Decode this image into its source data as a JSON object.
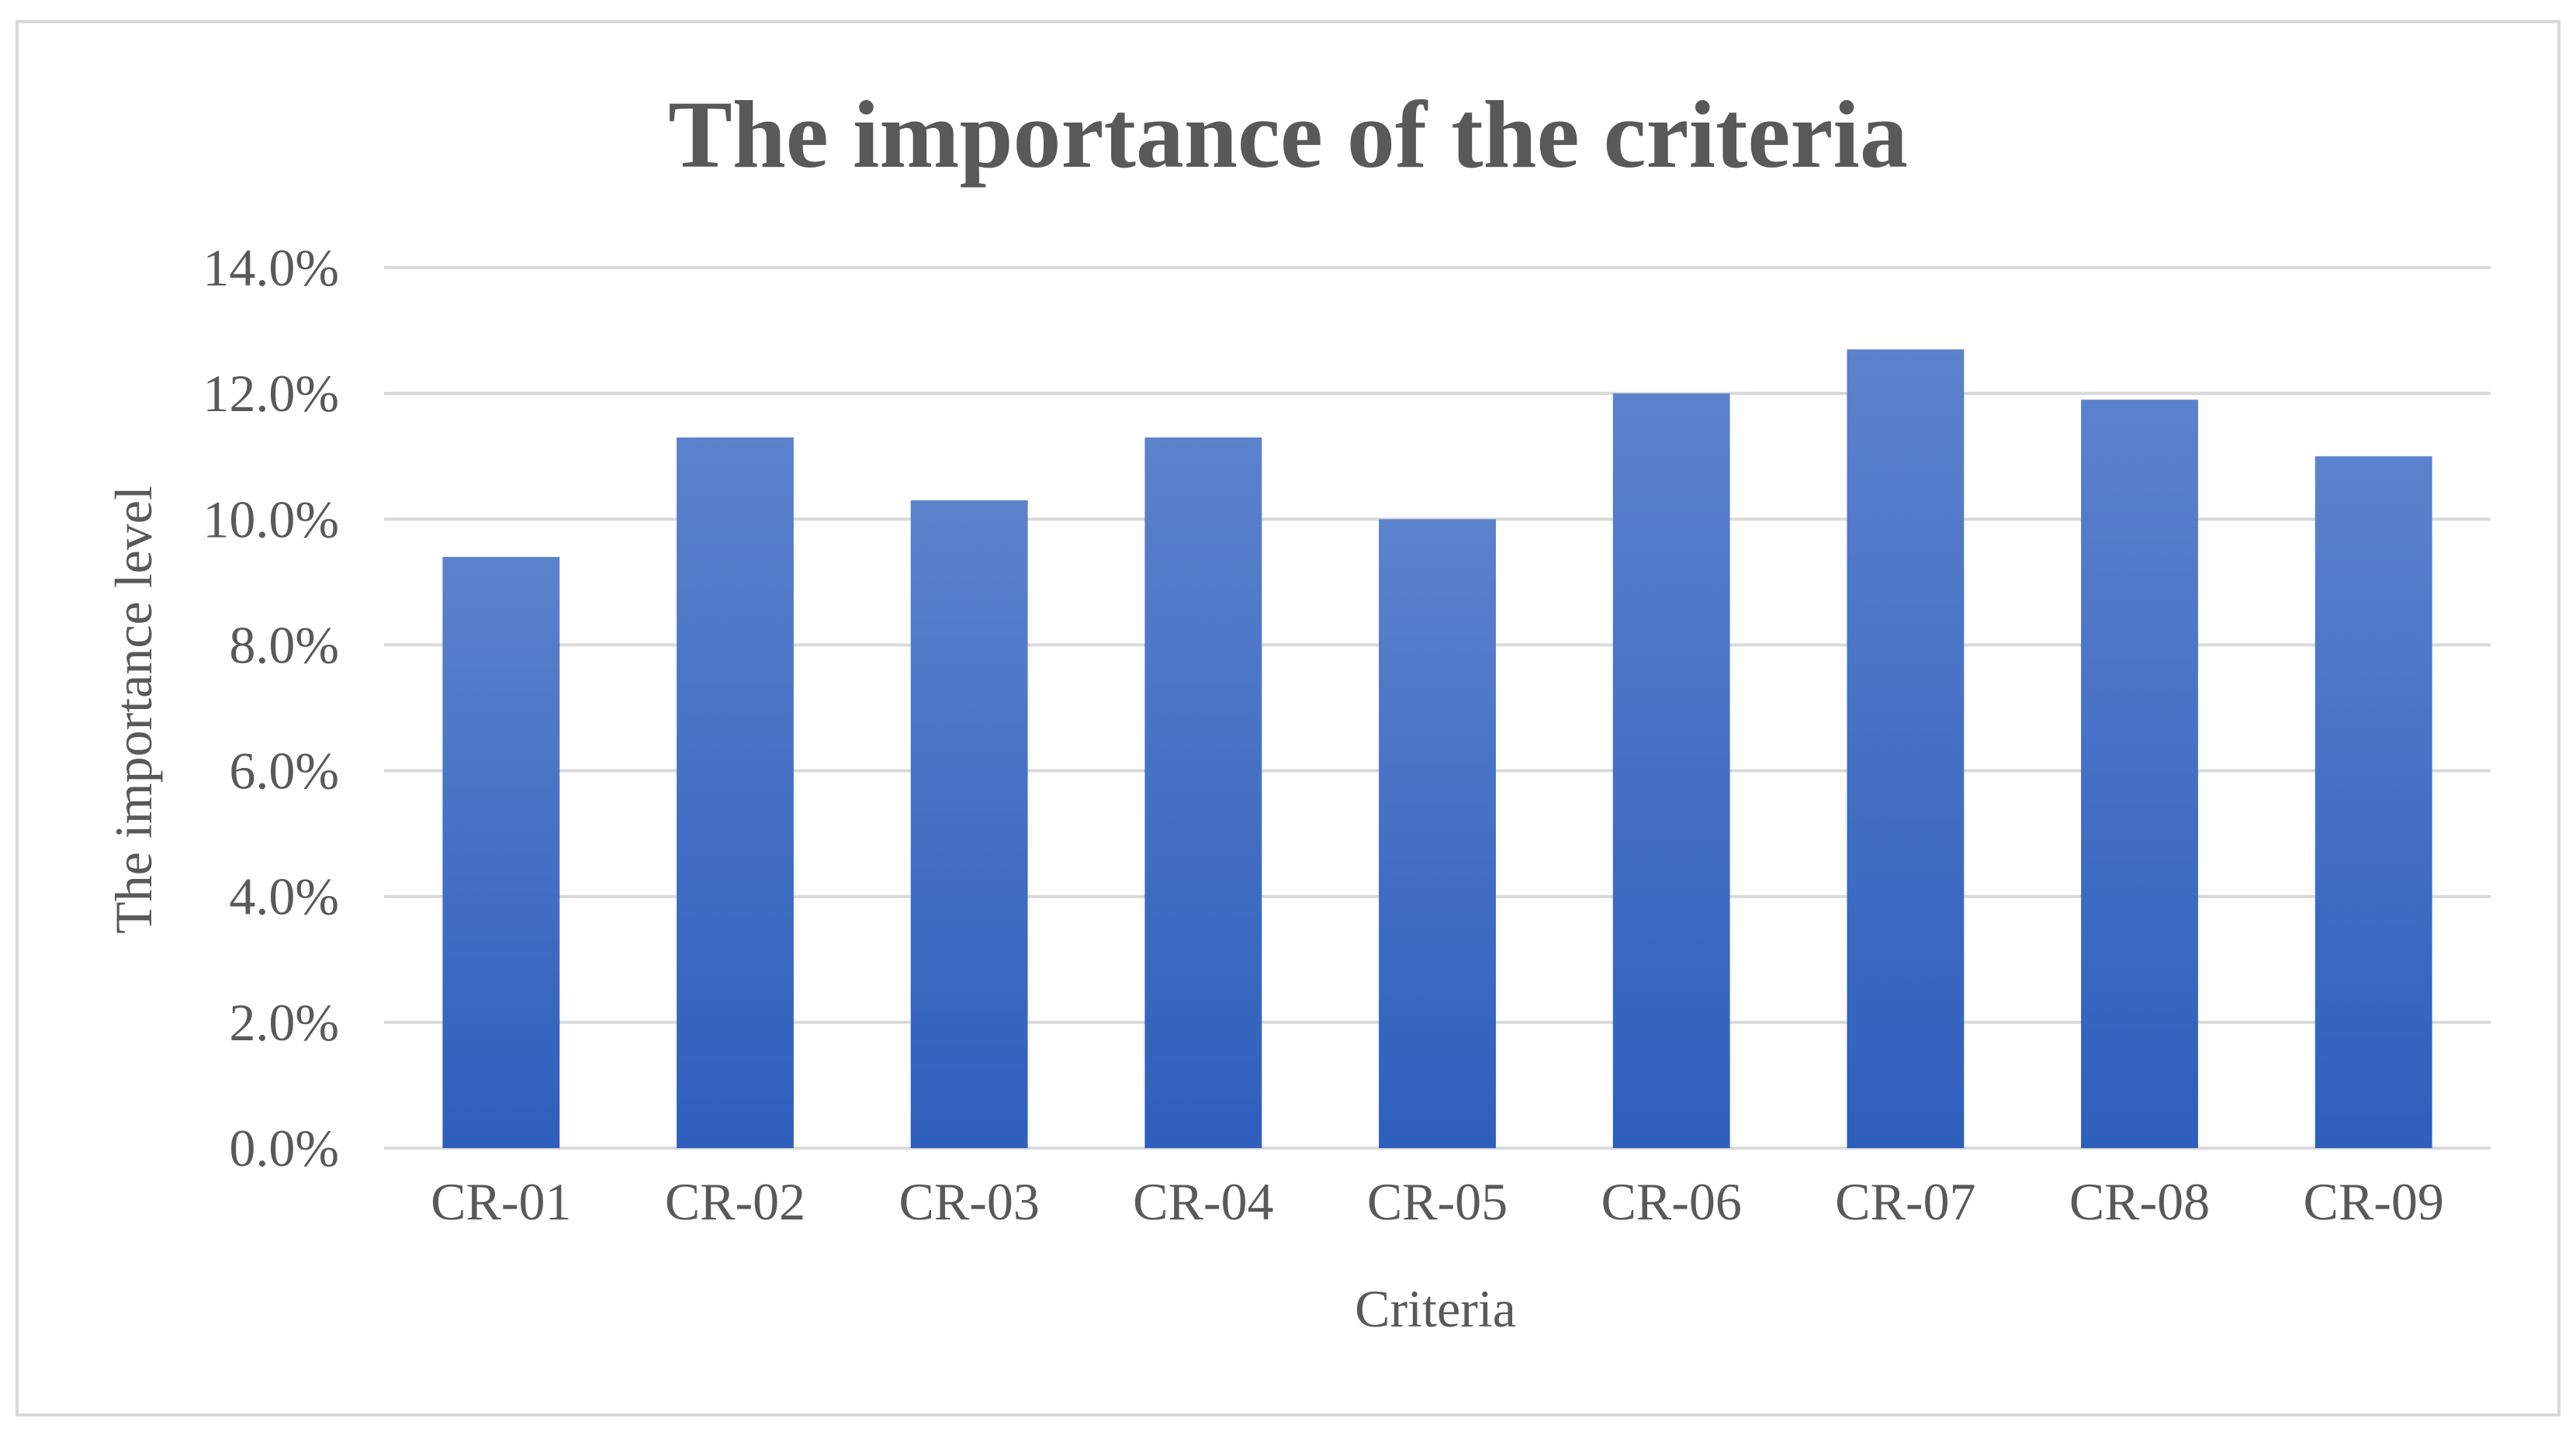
{
  "chart_data": {
    "type": "bar",
    "title": "The importance of the criteria",
    "xlabel": "Criteria",
    "ylabel": "The importance level",
    "categories": [
      "CR-01",
      "CR-02",
      "CR-03",
      "CR-04",
      "CR-05",
      "CR-06",
      "CR-07",
      "CR-08",
      "CR-09"
    ],
    "values": [
      9.4,
      11.3,
      10.3,
      11.3,
      10.0,
      12.0,
      12.7,
      11.9,
      11.0
    ],
    "y_unit": "%",
    "ylim": [
      0,
      14
    ],
    "y_ticks": [
      "0.0%",
      "2.0%",
      "4.0%",
      "6.0%",
      "8.0%",
      "10.0%",
      "12.0%",
      "14.0%"
    ],
    "grid": true,
    "legend": "none",
    "colors": {
      "bar_top": "#5b82cc",
      "bar_bottom": "#2e5fbd",
      "text": "#595959",
      "grid": "#d9d9d9"
    }
  }
}
